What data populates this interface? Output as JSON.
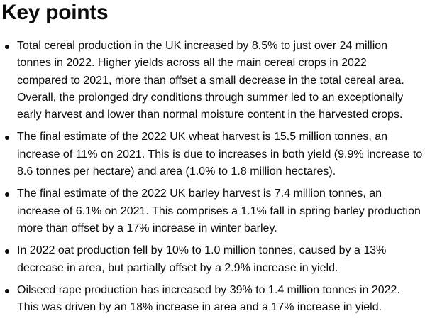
{
  "heading": "Key points",
  "items": [
    {
      "lines": [
        "Total cereal production in the UK increased by 8.5% to just over 24 million",
        "tonnes in 2022. Higher yields across all the main cereal crops in 2022",
        "compared to 2021, more than offset a small decrease in the total cereal area.",
        "Overall, the prolonged dry conditions through summer led to an exceptionally",
        "early harvest and lower than normal moisture content in the harvested crops."
      ]
    },
    {
      "lines": [
        "The final estimate of the 2022 UK wheat harvest is 15.5 million tonnes, an",
        "increase of 11% on 2021. This is due to increases in both yield (9.9% increase to",
        "8.6 tonnes per hectare) and area (1.0% to 1.8 million hectares)."
      ]
    },
    {
      "lines": [
        "The final estimate of the 2022 UK barley harvest is 7.4 million tonnes, an",
        "increase of 6.1% on 2021. This comprises a 1.1% fall in spring barley production",
        "more than offset by a 17% increase in winter barley."
      ]
    },
    {
      "lines": [
        "In 2022 oat production fell by 10% to 1.0 million tonnes, caused by a 13%",
        "decrease in area, but partially offset by a 2.9% increase in yield."
      ]
    },
    {
      "lines": [
        "Oilseed rape production has increased by 39% to 1.4 million tonnes in 2022.",
        "This was driven by an 18% increase in area and a 17% increase in yield."
      ]
    }
  ]
}
